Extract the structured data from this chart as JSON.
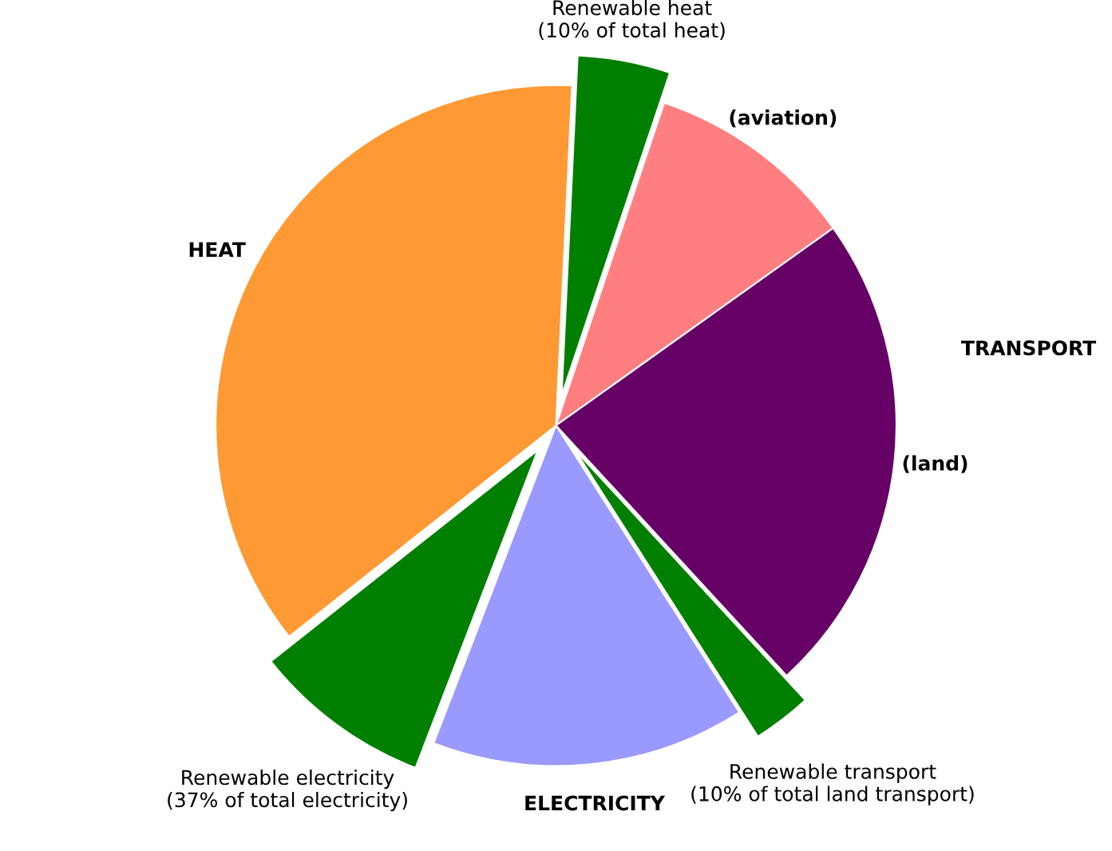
{
  "chart_data": {
    "type": "pie",
    "categories": [
      "Renewable heat\n(10% of total heat)",
      "(aviation)",
      "(land)",
      "Renewable transport\n(10% of total land transport)",
      "ELECTRICITY",
      "Renewable electricity\n(37% of total electricity)",
      "HEAT"
    ],
    "values": [
      4.4,
      10,
      23,
      2.8,
      14.9,
      8.5,
      36.4
    ],
    "colors": [
      "#007f00",
      "#ff7f80",
      "#660066",
      "#007f00",
      "#9999ff",
      "#007f00",
      "#ff9933"
    ],
    "annotations": [
      "TRANSPORT"
    ]
  }
}
